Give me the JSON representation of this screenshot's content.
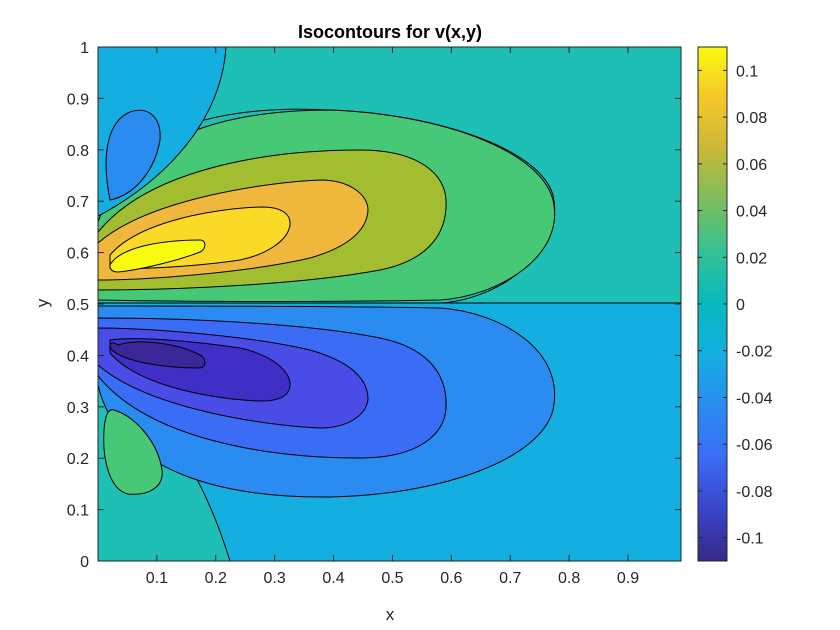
{
  "chart_data": {
    "type": "contourf",
    "title": "Isocontours for v(x,y)",
    "xlabel": "x",
    "ylabel": "y",
    "xlim": [
      0.0,
      0.99
    ],
    "ylim": [
      0,
      1
    ],
    "x_ticks": [
      "0.1",
      "0.2",
      "0.3",
      "0.4",
      "0.5",
      "0.6",
      "0.7",
      "0.8",
      "0.9"
    ],
    "y_ticks": [
      "0",
      "0.1",
      "0.2",
      "0.3",
      "0.4",
      "0.5",
      "0.6",
      "0.7",
      "0.8",
      "0.9",
      "1"
    ],
    "colorbar": {
      "ticks": [
        "-0.1",
        "-0.08",
        "-0.06",
        "-0.04",
        "-0.02",
        "0",
        "0.02",
        "0.04",
        "0.06",
        "0.08",
        "0.1"
      ],
      "range": [
        -0.11,
        0.11
      ],
      "colormap": "parula"
    },
    "levels": [
      -0.1,
      -0.09,
      -0.07,
      -0.05,
      -0.03,
      -0.01,
      0.0,
      0.01,
      0.03,
      0.05,
      0.07,
      0.09
    ],
    "features": [
      {
        "kind": "max",
        "x": 0.13,
        "y": 0.59,
        "value": 0.1
      },
      {
        "kind": "min",
        "x": 0.13,
        "y": 0.41,
        "value": -0.1
      },
      {
        "kind": "local_min",
        "x": 0.07,
        "y": 0.8,
        "value": -0.02
      },
      {
        "kind": "local_max",
        "x": 0.07,
        "y": 0.2,
        "value": 0.02
      }
    ],
    "grid": false
  }
}
